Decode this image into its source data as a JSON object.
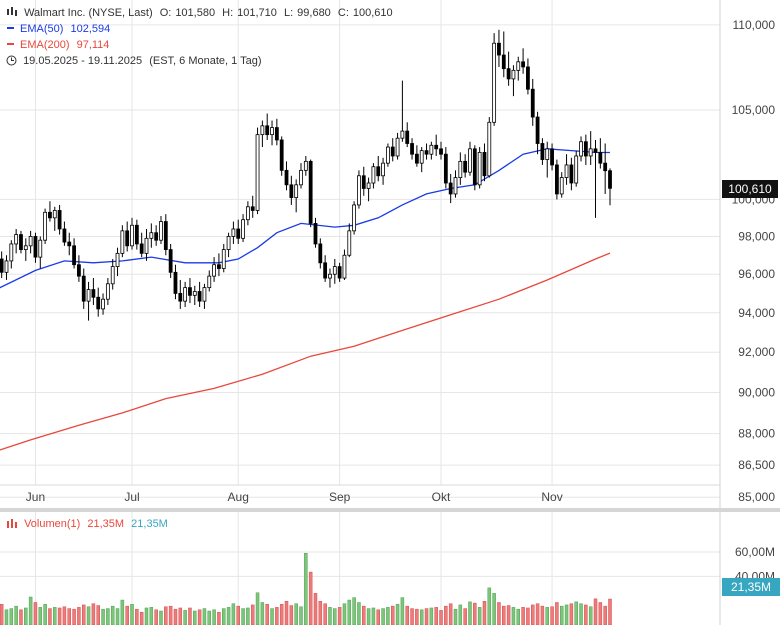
{
  "legend": {
    "title_line": {
      "name": "Walmart Inc. (NYSE, Last)",
      "open_label": "O:",
      "open": "101,580",
      "high_label": "H:",
      "high": "101,710",
      "low_label": "L:",
      "low": "99,680",
      "close_label": "C:",
      "close": "100,610"
    },
    "ema50": {
      "label": "EMA(50)",
      "value": "102,594",
      "color": "#1a3be6"
    },
    "ema200": {
      "label": "EMA(200)",
      "value": "97,114",
      "color": "#e8483c"
    },
    "period": {
      "range": "19.05.2025 - 19.11.2025",
      "detail": "(EST, 6 Monate, 1 Tag)"
    },
    "volume": {
      "label": "Volumen(1)",
      "value1": "21,35M",
      "value2": "21,35M"
    }
  },
  "badges": {
    "last_price": "100,610",
    "last_volume": "21,35M"
  },
  "colors": {
    "up": "#ffffff",
    "down": "#000000",
    "vol_up": "#7cc67c",
    "vol_down": "#ee7a7a",
    "ema50": "#1a3be6",
    "ema200": "#e8483c",
    "grid": "#e6e6e6"
  },
  "chart_data": {
    "type": "candlestick",
    "price_axis": {
      "scale": "log",
      "ticks": [
        85000,
        86500,
        88000,
        90000,
        92000,
        94000,
        96000,
        98000,
        100000,
        105000,
        110000
      ],
      "tick_labels": [
        "85,000",
        "86,500",
        "88,000",
        "90,000",
        "92,000",
        "94,000",
        "96,000",
        "98,000",
        "100,000",
        "105,000",
        "110,000"
      ],
      "range": [
        84.5,
        111.5
      ]
    },
    "volume_axis": {
      "ticks": [
        40,
        60
      ],
      "tick_labels": [
        "40,00M",
        "60,00M"
      ],
      "range": [
        0,
        60
      ]
    },
    "x_axis": {
      "labels": [
        "Jun",
        "Jul",
        "Aug",
        "Sep",
        "Okt",
        "Nov"
      ],
      "range": [
        "2025-05-19",
        "2025-11-19"
      ]
    },
    "candles": [
      [
        "2025-05-19",
        98.2,
        98.9,
        97.0,
        97.5,
        14.5
      ],
      [
        "2025-05-20",
        97.5,
        98.0,
        96.5,
        96.8,
        16.5
      ],
      [
        "2025-05-21",
        96.8,
        97.2,
        95.8,
        96.1,
        17.0
      ],
      [
        "2025-05-22",
        96.1,
        97.0,
        95.7,
        96.7,
        12.5
      ],
      [
        "2025-05-23",
        96.7,
        97.8,
        96.3,
        97.6,
        13.5
      ],
      [
        "2025-05-27",
        97.6,
        98.4,
        97.1,
        98.1,
        15.5
      ],
      [
        "2025-05-28",
        98.1,
        98.3,
        97.1,
        97.3,
        12.5
      ],
      [
        "2025-05-29",
        97.3,
        97.9,
        96.7,
        97.5,
        14.0
      ],
      [
        "2025-05-30",
        97.5,
        98.3,
        97.1,
        98.0,
        23.0
      ],
      [
        "2025-06-02",
        98.0,
        98.2,
        96.6,
        96.9,
        18.5
      ],
      [
        "2025-06-03",
        96.9,
        98.0,
        96.3,
        97.8,
        14.5
      ],
      [
        "2025-06-04",
        97.8,
        99.5,
        97.6,
        99.3,
        17.0
      ],
      [
        "2025-06-05",
        99.3,
        99.9,
        98.8,
        99.0,
        13.5
      ],
      [
        "2025-06-06",
        99.0,
        99.6,
        98.3,
        99.4,
        14.5
      ],
      [
        "2025-06-09",
        99.4,
        99.7,
        98.1,
        98.4,
        14.0
      ],
      [
        "2025-06-10",
        98.4,
        98.8,
        97.5,
        97.7,
        15.0
      ],
      [
        "2025-06-11",
        97.7,
        98.2,
        97.0,
        97.5,
        13.5
      ],
      [
        "2025-06-12",
        97.5,
        97.9,
        96.3,
        96.5,
        13.0
      ],
      [
        "2025-06-13",
        96.5,
        97.0,
        95.6,
        95.9,
        14.5
      ],
      [
        "2025-06-16",
        95.9,
        96.3,
        94.2,
        94.6,
        16.5
      ],
      [
        "2025-06-17",
        94.6,
        95.6,
        93.6,
        95.2,
        15.0
      ],
      [
        "2025-06-18",
        95.2,
        95.8,
        94.4,
        94.8,
        17.5
      ],
      [
        "2025-06-20",
        94.8,
        95.3,
        93.8,
        94.2,
        16.0
      ],
      [
        "2025-06-23",
        94.2,
        95.0,
        93.9,
        94.7,
        13.0
      ],
      [
        "2025-06-24",
        94.7,
        95.8,
        94.4,
        95.5,
        13.5
      ],
      [
        "2025-06-25",
        95.5,
        96.8,
        95.2,
        96.4,
        15.5
      ],
      [
        "2025-06-26",
        96.4,
        97.4,
        95.9,
        97.1,
        13.5
      ],
      [
        "2025-06-27",
        97.1,
        98.6,
        96.9,
        98.3,
        20.5
      ],
      [
        "2025-06-30",
        98.3,
        98.8,
        97.2,
        97.5,
        15.5
      ],
      [
        "2025-07-01",
        97.5,
        99.0,
        97.3,
        98.6,
        17.0
      ],
      [
        "2025-07-02",
        98.6,
        98.9,
        97.3,
        97.6,
        13.0
      ],
      [
        "2025-07-03",
        97.6,
        98.2,
        96.9,
        97.1,
        10.5
      ],
      [
        "2025-07-07",
        97.1,
        98.4,
        96.7,
        97.9,
        14.0
      ],
      [
        "2025-07-08",
        97.9,
        98.7,
        97.4,
        98.2,
        14.5
      ],
      [
        "2025-07-09",
        98.2,
        98.6,
        97.5,
        97.8,
        12.5
      ],
      [
        "2025-07-10",
        97.8,
        99.1,
        97.6,
        98.8,
        11.5
      ],
      [
        "2025-07-11",
        98.8,
        99.2,
        97.0,
        97.3,
        15.0
      ],
      [
        "2025-07-14",
        97.3,
        97.6,
        95.8,
        96.1,
        15.5
      ],
      [
        "2025-07-15",
        96.1,
        96.5,
        94.7,
        95.0,
        13.0
      ],
      [
        "2025-07-16",
        95.0,
        95.7,
        94.2,
        94.6,
        14.0
      ],
      [
        "2025-07-17",
        94.6,
        95.6,
        94.3,
        95.3,
        12.0
      ],
      [
        "2025-07-18",
        95.3,
        95.8,
        94.5,
        94.9,
        14.0
      ],
      [
        "2025-07-21",
        94.9,
        95.4,
        94.4,
        95.1,
        11.5
      ],
      [
        "2025-07-22",
        95.1,
        95.6,
        94.3,
        94.6,
        12.5
      ],
      [
        "2025-07-23",
        94.6,
        95.5,
        94.2,
        95.3,
        13.5
      ],
      [
        "2025-07-24",
        95.3,
        96.2,
        95.1,
        95.9,
        11.5
      ],
      [
        "2025-07-25",
        95.9,
        96.9,
        95.6,
        96.5,
        12.5
      ],
      [
        "2025-07-28",
        96.5,
        97.1,
        95.9,
        96.3,
        10.5
      ],
      [
        "2025-07-29",
        96.3,
        97.6,
        96.1,
        97.3,
        13.5
      ],
      [
        "2025-07-30",
        97.3,
        98.2,
        96.9,
        98.0,
        14.5
      ],
      [
        "2025-07-31",
        98.0,
        98.8,
        97.6,
        98.4,
        17.5
      ],
      [
        "2025-08-01",
        98.4,
        98.9,
        97.6,
        97.9,
        15.5
      ],
      [
        "2025-08-04",
        97.9,
        99.2,
        97.7,
        98.9,
        13.5
      ],
      [
        "2025-08-05",
        98.9,
        99.9,
        98.6,
        99.6,
        14.0
      ],
      [
        "2025-08-06",
        99.6,
        100.2,
        99.0,
        99.4,
        16.5
      ],
      [
        "2025-08-07",
        99.4,
        104.0,
        99.2,
        103.6,
        26.5
      ],
      [
        "2025-08-08",
        103.6,
        104.4,
        102.9,
        104.1,
        18.5
      ],
      [
        "2025-08-11",
        104.1,
        104.8,
        103.3,
        103.6,
        17.0
      ],
      [
        "2025-08-12",
        103.6,
        104.4,
        103.0,
        104.0,
        13.5
      ],
      [
        "2025-08-13",
        104.0,
        104.5,
        103.0,
        103.3,
        14.5
      ],
      [
        "2025-08-14",
        103.3,
        103.5,
        101.3,
        101.6,
        17.0
      ],
      [
        "2025-08-15",
        101.6,
        102.1,
        100.5,
        100.8,
        19.5
      ],
      [
        "2025-08-18",
        100.8,
        101.3,
        99.7,
        100.1,
        16.0
      ],
      [
        "2025-08-19",
        100.1,
        101.1,
        99.3,
        100.8,
        17.5
      ],
      [
        "2025-08-20",
        100.8,
        102.0,
        100.6,
        101.6,
        15.0
      ],
      [
        "2025-08-21",
        101.6,
        102.4,
        101.3,
        102.1,
        59.0
      ],
      [
        "2025-08-22",
        102.1,
        102.2,
        98.5,
        98.7,
        43.5
      ],
      [
        "2025-08-25",
        98.7,
        99.0,
        97.4,
        97.6,
        26.0
      ],
      [
        "2025-08-26",
        97.6,
        97.9,
        96.3,
        96.6,
        19.5
      ],
      [
        "2025-08-27",
        96.6,
        97.0,
        95.6,
        95.8,
        17.5
      ],
      [
        "2025-08-28",
        95.8,
        96.3,
        95.3,
        96.0,
        14.5
      ],
      [
        "2025-08-29",
        96.0,
        96.8,
        95.5,
        96.4,
        13.5
      ],
      [
        "2025-09-02",
        96.4,
        96.6,
        95.6,
        95.8,
        14.5
      ],
      [
        "2025-09-03",
        95.8,
        97.3,
        95.7,
        97.0,
        17.5
      ],
      [
        "2025-09-04",
        97.0,
        98.7,
        96.9,
        98.3,
        20.5
      ],
      [
        "2025-09-05",
        98.3,
        99.9,
        98.1,
        99.7,
        22.5
      ],
      [
        "2025-09-08",
        99.7,
        101.6,
        99.5,
        101.3,
        18.5
      ],
      [
        "2025-09-09",
        101.3,
        101.8,
        100.2,
        100.6,
        15.5
      ],
      [
        "2025-09-10",
        100.6,
        101.2,
        99.9,
        100.9,
        13.5
      ],
      [
        "2025-09-11",
        100.9,
        102.0,
        100.6,
        101.8,
        14.0
      ],
      [
        "2025-09-12",
        101.8,
        102.4,
        101.0,
        101.3,
        12.5
      ],
      [
        "2025-09-15",
        101.3,
        102.3,
        100.8,
        102.0,
        13.5
      ],
      [
        "2025-09-16",
        102.0,
        103.1,
        101.8,
        102.9,
        14.5
      ],
      [
        "2025-09-17",
        102.9,
        103.4,
        102.1,
        102.4,
        15.5
      ],
      [
        "2025-09-18",
        102.4,
        103.7,
        102.2,
        103.4,
        17.0
      ],
      [
        "2025-09-19",
        103.4,
        106.7,
        103.2,
        103.8,
        22.5
      ],
      [
        "2025-09-22",
        103.8,
        104.3,
        102.9,
        103.1,
        15.5
      ],
      [
        "2025-09-23",
        103.1,
        103.4,
        102.2,
        102.5,
        13.5
      ],
      [
        "2025-09-24",
        102.5,
        103.0,
        101.8,
        102.0,
        13.0
      ],
      [
        "2025-09-25",
        102.0,
        102.9,
        101.5,
        102.7,
        12.5
      ],
      [
        "2025-09-26",
        102.7,
        103.1,
        102.2,
        102.5,
        13.5
      ],
      [
        "2025-09-29",
        102.5,
        103.2,
        102.2,
        103.0,
        14.0
      ],
      [
        "2025-09-30",
        103.0,
        103.6,
        102.4,
        102.8,
        14.5
      ],
      [
        "2025-10-01",
        102.8,
        103.2,
        102.2,
        102.5,
        12.0
      ],
      [
        "2025-10-02",
        102.5,
        102.9,
        100.6,
        100.9,
        15.5
      ],
      [
        "2025-10-03",
        100.9,
        101.4,
        99.8,
        100.3,
        17.5
      ],
      [
        "2025-10-06",
        100.3,
        101.6,
        100.1,
        101.2,
        13.0
      ],
      [
        "2025-10-07",
        101.2,
        102.6,
        100.8,
        102.1,
        16.5
      ],
      [
        "2025-10-08",
        102.1,
        102.5,
        101.2,
        101.5,
        13.5
      ],
      [
        "2025-10-09",
        101.5,
        103.2,
        101.3,
        102.8,
        19.0
      ],
      [
        "2025-10-10",
        102.8,
        103.0,
        100.5,
        100.8,
        18.0
      ],
      [
        "2025-10-13",
        100.8,
        102.9,
        100.6,
        102.6,
        14.5
      ],
      [
        "2025-10-14",
        102.6,
        103.1,
        101.0,
        101.3,
        19.5
      ],
      [
        "2025-10-15",
        101.3,
        104.6,
        101.2,
        104.3,
        30.5
      ],
      [
        "2025-10-16",
        104.3,
        109.5,
        104.1,
        108.9,
        26.0
      ],
      [
        "2025-10-17",
        108.9,
        109.7,
        107.5,
        108.2,
        18.5
      ],
      [
        "2025-10-20",
        108.2,
        109.6,
        106.9,
        107.4,
        15.5
      ],
      [
        "2025-10-21",
        107.4,
        108.4,
        106.4,
        106.8,
        16.0
      ],
      [
        "2025-10-22",
        106.8,
        107.6,
        105.8,
        107.3,
        14.5
      ],
      [
        "2025-10-23",
        107.3,
        108.1,
        106.7,
        107.8,
        13.0
      ],
      [
        "2025-10-24",
        107.8,
        108.6,
        107.1,
        107.5,
        14.5
      ],
      [
        "2025-10-27",
        107.5,
        108.0,
        105.9,
        106.2,
        14.0
      ],
      [
        "2025-10-28",
        106.2,
        106.8,
        104.1,
        104.6,
        16.5
      ],
      [
        "2025-10-29",
        104.6,
        104.9,
        102.5,
        103.1,
        17.5
      ],
      [
        "2025-10-30",
        103.1,
        103.4,
        101.9,
        102.2,
        15.5
      ],
      [
        "2025-10-31",
        102.2,
        103.2,
        101.2,
        102.8,
        14.5
      ],
      [
        "2025-11-03",
        102.8,
        103.1,
        101.6,
        101.9,
        15.0
      ],
      [
        "2025-11-04",
        101.9,
        102.2,
        100.0,
        100.3,
        18.5
      ],
      [
        "2025-11-05",
        100.3,
        101.5,
        100.1,
        101.2,
        15.5
      ],
      [
        "2025-11-06",
        101.2,
        102.5,
        100.8,
        101.9,
        16.5
      ],
      [
        "2025-11-07",
        101.9,
        102.3,
        100.5,
        100.9,
        17.5
      ],
      [
        "2025-11-10",
        100.9,
        102.7,
        100.7,
        102.4,
        19.0
      ],
      [
        "2025-11-11",
        102.4,
        103.5,
        102.1,
        103.2,
        17.5
      ],
      [
        "2025-11-12",
        103.2,
        103.6,
        101.9,
        102.4,
        16.5
      ],
      [
        "2025-11-13",
        102.4,
        103.8,
        101.9,
        102.8,
        15.0
      ],
      [
        "2025-11-14",
        102.8,
        103.3,
        99.0,
        102.6,
        21.5
      ],
      [
        "2025-11-17",
        102.6,
        103.4,
        101.7,
        102.0,
        18.5
      ],
      [
        "2025-11-18",
        102.0,
        103.1,
        100.3,
        101.58,
        15.5
      ],
      [
        "2025-11-19",
        101.58,
        101.71,
        99.68,
        100.61,
        21.35
      ]
    ],
    "ema50": [
      [
        "2025-05-19",
        95.1
      ],
      [
        "2025-06-02",
        96.2
      ],
      [
        "2025-06-10",
        96.7
      ],
      [
        "2025-06-18",
        96.6
      ],
      [
        "2025-06-27",
        96.7
      ],
      [
        "2025-07-08",
        96.9
      ],
      [
        "2025-07-17",
        96.6
      ],
      [
        "2025-07-28",
        96.6
      ],
      [
        "2025-08-01",
        96.8
      ],
      [
        "2025-08-07",
        97.4
      ],
      [
        "2025-08-13",
        98.2
      ],
      [
        "2025-08-20",
        98.7
      ],
      [
        "2025-08-29",
        98.5
      ],
      [
        "2025-09-05",
        98.6
      ],
      [
        "2025-09-12",
        99.0
      ],
      [
        "2025-09-19",
        99.7
      ],
      [
        "2025-09-26",
        100.3
      ],
      [
        "2025-10-03",
        100.6
      ],
      [
        "2025-10-10",
        100.8
      ],
      [
        "2025-10-17",
        101.6
      ],
      [
        "2025-10-24",
        102.5
      ],
      [
        "2025-10-31",
        102.8
      ],
      [
        "2025-11-07",
        102.7
      ],
      [
        "2025-11-14",
        102.6
      ],
      [
        "2025-11-19",
        102.594
      ]
    ],
    "ema200": [
      [
        "2025-05-19",
        87.1
      ],
      [
        "2025-05-30",
        87.7
      ],
      [
        "2025-06-13",
        88.4
      ],
      [
        "2025-06-27",
        89.0
      ],
      [
        "2025-07-11",
        89.7
      ],
      [
        "2025-07-25",
        90.2
      ],
      [
        "2025-08-08",
        90.9
      ],
      [
        "2025-08-22",
        91.8
      ],
      [
        "2025-09-05",
        92.3
      ],
      [
        "2025-09-19",
        93.1
      ],
      [
        "2025-10-03",
        93.9
      ],
      [
        "2025-10-17",
        94.7
      ],
      [
        "2025-10-31",
        95.7
      ],
      [
        "2025-11-14",
        96.8
      ],
      [
        "2025-11-19",
        97.114
      ]
    ]
  }
}
